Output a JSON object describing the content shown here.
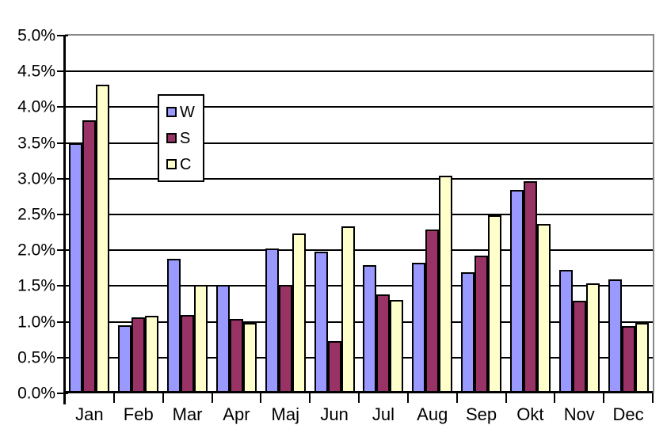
{
  "chart_data": {
    "type": "bar",
    "title": "",
    "xlabel": "",
    "ylabel": "",
    "categories": [
      "Jan",
      "Feb",
      "Mar",
      "Apr",
      "Maj",
      "Jun",
      "Jul",
      "Aug",
      "Sep",
      "Okt",
      "Nov",
      "Dec"
    ],
    "series": [
      {
        "name": "W",
        "color": "#9999FF",
        "values": [
          3.5,
          0.95,
          1.88,
          1.51,
          2.02,
          1.98,
          1.79,
          1.83,
          1.69,
          2.84,
          1.73,
          1.59
        ]
      },
      {
        "name": "S",
        "color": "#993366",
        "values": [
          3.82,
          1.06,
          1.09,
          1.04,
          1.51,
          0.73,
          1.38,
          2.29,
          1.93,
          2.96,
          1.29,
          0.94
        ]
      },
      {
        "name": "C",
        "color": "#FFFFCC",
        "values": [
          4.31,
          1.08,
          1.51,
          0.98,
          2.23,
          2.33,
          1.31,
          3.04,
          2.49,
          2.37,
          1.54,
          0.98
        ]
      }
    ],
    "unit": "%",
    "ylim": [
      0,
      5
    ],
    "ytick_step": 0.5,
    "ytick_labels": [
      "0.0%",
      "0.5%",
      "1.0%",
      "1.5%",
      "2.0%",
      "2.5%",
      "3.0%",
      "3.5%",
      "4.0%",
      "4.5%",
      "5.0%"
    ],
    "grid": true,
    "gridline_color": "#000000",
    "plot_border_color": "#888888",
    "bar_border_color": "#000000",
    "legend_position": "upper-left-inside",
    "legend_entries": [
      "W",
      "S",
      "C"
    ]
  }
}
